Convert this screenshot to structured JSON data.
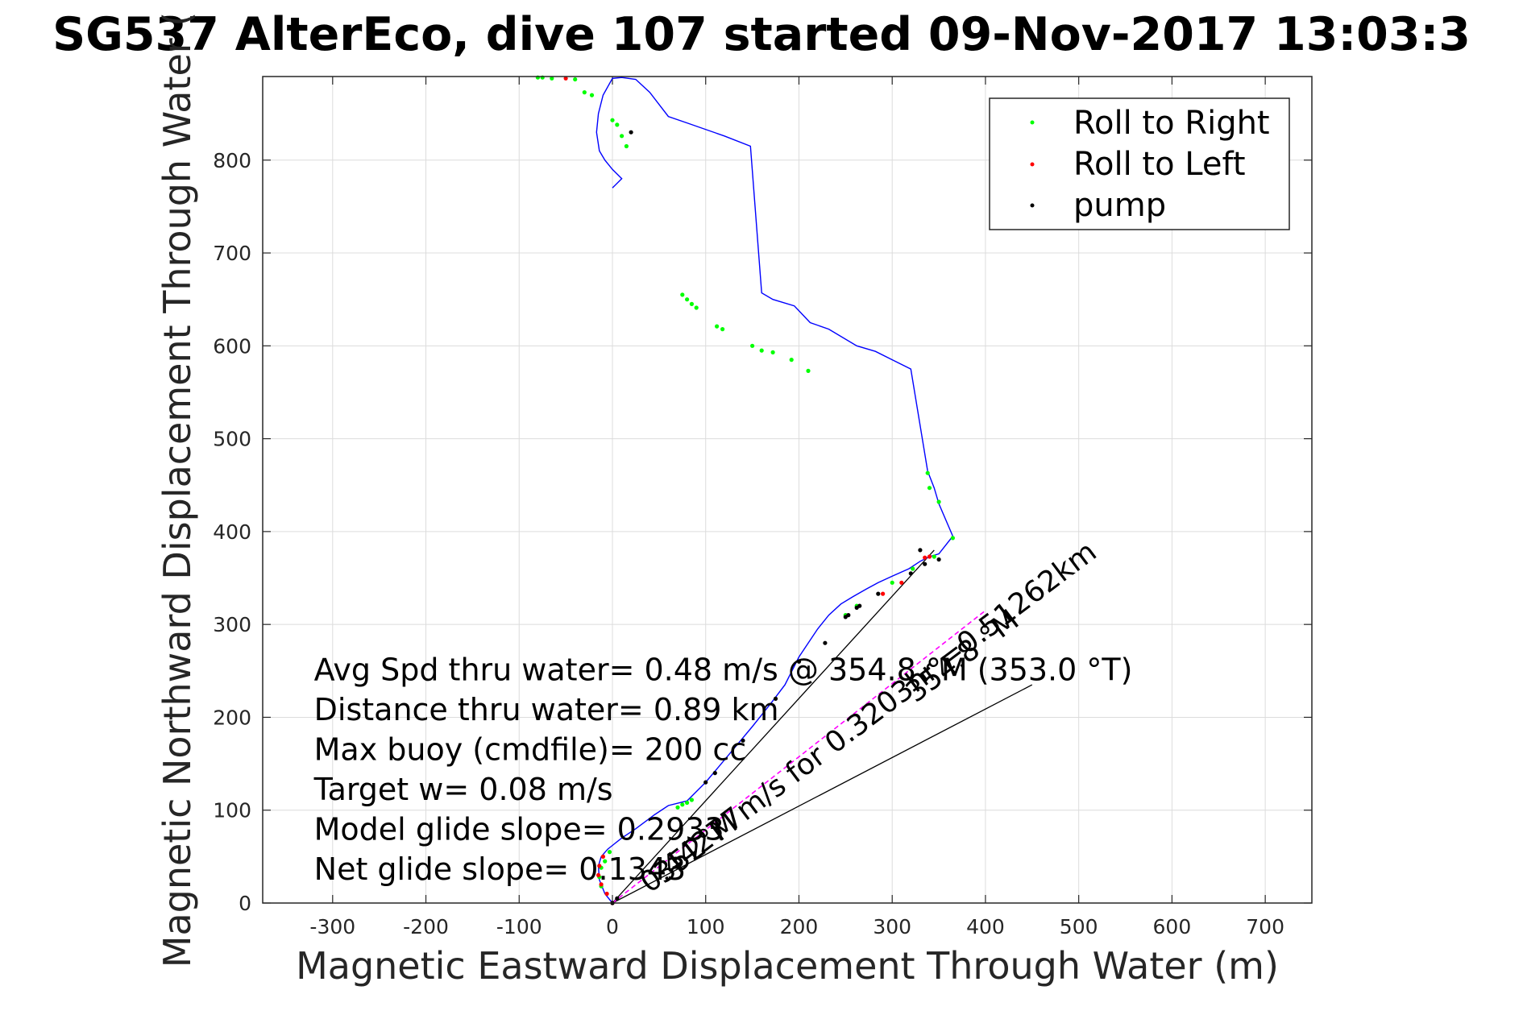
{
  "chart_data": {
    "type": "line",
    "title": "SG537 AlterEco, dive 107 started 09-Nov-2017 13:03:3",
    "xlabel": "Magnetic Eastward Displacement Through Water (m)",
    "ylabel": "Magnetic Northward Displacement Through Water (",
    "xlim": [
      -375,
      750
    ],
    "ylim": [
      0,
      890
    ],
    "xticks": [
      -300,
      -200,
      -100,
      0,
      100,
      200,
      300,
      400,
      500,
      600,
      700
    ],
    "yticks": [
      0,
      100,
      200,
      300,
      400,
      500,
      600,
      700,
      800
    ],
    "grid": true,
    "legend_position": "top-right",
    "legend": [
      {
        "label": "Roll to Right",
        "color": "#00ff00"
      },
      {
        "label": "Roll to Left",
        "color": "#ff0000"
      },
      {
        "label": "pump",
        "color": "#000000"
      }
    ],
    "track": {
      "color": "#0000ff",
      "x": [
        0,
        -8,
        -14,
        -15,
        -12,
        -5,
        0,
        10,
        25,
        45,
        60,
        80,
        100,
        125,
        150,
        170,
        185,
        200,
        210,
        220,
        232,
        245,
        258,
        272,
        285,
        300,
        318,
        330,
        340,
        350,
        365,
        350,
        345,
        338,
        320,
        300,
        282,
        262,
        232,
        212,
        195,
        172,
        160,
        148,
        120,
        80,
        60,
        40,
        25,
        10,
        0,
        -10,
        -15,
        -17,
        -14,
        -8,
        0,
        10,
        0
      ],
      "y": [
        0,
        10,
        25,
        40,
        50,
        58,
        62,
        70,
        80,
        95,
        105,
        110,
        130,
        160,
        190,
        215,
        235,
        265,
        280,
        295,
        310,
        322,
        330,
        338,
        345,
        352,
        360,
        368,
        373,
        376,
        395,
        430,
        447,
        465,
        575,
        585,
        594,
        600,
        618,
        625,
        643,
        650,
        657,
        815,
        826,
        840,
        847,
        873,
        887,
        889,
        888,
        870,
        850,
        830,
        810,
        800,
        790,
        780,
        770
      ]
    },
    "roll_right": {
      "color": "#00ff00",
      "x": [
        -3,
        -8,
        -12,
        -14,
        -12,
        70,
        75,
        80,
        85,
        250,
        262,
        300,
        322,
        345,
        338,
        340,
        350,
        365,
        210,
        192,
        172,
        160,
        150,
        118,
        112,
        90,
        85,
        80,
        75,
        15,
        10,
        5,
        0,
        -22,
        -30,
        -40,
        -65,
        -75,
        -80
      ],
      "y": [
        55,
        45,
        38,
        28,
        18,
        103,
        106,
        108,
        111,
        310,
        320,
        345,
        360,
        373,
        463,
        447,
        432,
        393,
        573,
        585,
        593,
        595,
        600,
        618,
        621,
        641,
        645,
        650,
        655,
        815,
        826,
        838,
        843,
        870,
        873,
        887,
        888,
        889,
        889
      ],
      "note": ""
    },
    "roll_left": {
      "color": "#ff0000",
      "x": [
        -10,
        -14,
        -15,
        -12,
        -6,
        0,
        290,
        310,
        340,
        335,
        -50
      ],
      "y": [
        50,
        40,
        30,
        20,
        10,
        0,
        333,
        345,
        373,
        372,
        888
      ]
    },
    "pump": {
      "color": "#000000",
      "x": [
        100,
        110,
        140,
        175,
        200,
        228,
        250,
        253,
        262,
        265,
        285,
        320,
        335,
        350,
        330,
        20,
        0,
        5
      ],
      "y": [
        130,
        140,
        175,
        220,
        260,
        280,
        308,
        310,
        318,
        320,
        333,
        355,
        365,
        370,
        380,
        830,
        0,
        5
      ]
    },
    "dive_line": {
      "color": "#ff00ff",
      "x": [
        0,
        400
      ],
      "y": [
        0,
        315
      ]
    },
    "black_lines": [
      {
        "x": [
          0,
          345
        ],
        "y": [
          0,
          380
        ]
      },
      {
        "x": [
          0,
          450
        ],
        "y": [
          0,
          235
        ]
      }
    ],
    "annotations": [
      {
        "text": "Avg Spd thru water=  0.48 m/s @ 354.8 °M (353.0 °T)",
        "x": -320,
        "y": 240
      },
      {
        "text": "Distance thru water=  0.89 km",
        "x": -320,
        "y": 197
      },
      {
        "text": "Max buoy (cmdfile)= 200 cc",
        "x": -320,
        "y": 154
      },
      {
        "text": "Target w= 0.08 m/s",
        "x": -320,
        "y": 111
      },
      {
        "text": "Model glide slope= 0.2933",
        "x": -320,
        "y": 68
      },
      {
        "text": "Net glide slope= 0.1343",
        "x": -320,
        "y": 25
      }
    ],
    "vector_labels": [
      {
        "text": "0.44277m/s for 0.3203hr =0.51262km",
        "x": 40,
        "y": 10,
        "angle": -37
      },
      {
        "text": "352°M",
        "x": 55,
        "y": 20,
        "angle": -37
      },
      {
        "text": "354.8 °M",
        "x": 325,
        "y": 215,
        "angle": -37
      }
    ]
  }
}
